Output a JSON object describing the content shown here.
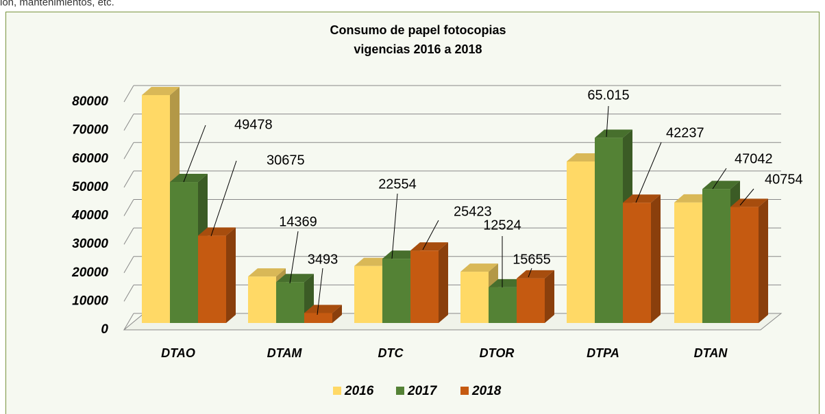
{
  "page_text": "ión, mantenimientos, etc.",
  "chart_data": {
    "type": "bar3d",
    "title": [
      "Consumo de papel fotocopias",
      "vigencias 2016 a 2018"
    ],
    "categories": [
      "DTAO",
      "DTAM",
      "DTC",
      "DTOR",
      "DTPA",
      "DTAN"
    ],
    "series": [
      {
        "name": "2016",
        "color": "#ffd966",
        "values": [
          80000,
          16300,
          20000,
          18000,
          56700,
          42300
        ]
      },
      {
        "name": "2017",
        "color": "#548235",
        "values": [
          49478,
          14369,
          22554,
          12524,
          65015,
          47042
        ],
        "value_labels": [
          "49478",
          "14369",
          "22554",
          "12524",
          "65.015",
          "47042"
        ]
      },
      {
        "name": "2018",
        "color": "#c55a11",
        "values": [
          30675,
          3493,
          25423,
          15655,
          42237,
          40754
        ],
        "value_labels": [
          "30675",
          "3493",
          "25423",
          "15655",
          "42237",
          "40754"
        ]
      }
    ],
    "ylim": [
      0,
      80000
    ],
    "yticks": [
      0,
      10000,
      20000,
      30000,
      40000,
      50000,
      60000,
      70000,
      80000
    ],
    "grid": true,
    "legend": "bottom"
  }
}
